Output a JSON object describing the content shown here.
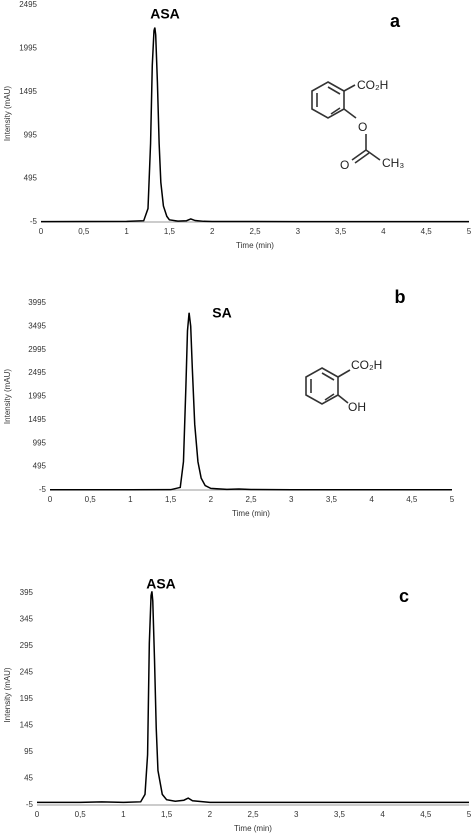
{
  "chart_data": [
    {
      "type": "line",
      "peak_label": "ASA",
      "panel_label": "a",
      "x_label": "Time (min)",
      "y_label": "Intensity (mAU)",
      "color": "#000000",
      "structure_labels": [
        "CO₂H",
        "O",
        "O",
        "CH₃"
      ],
      "x": [
        0,
        1,
        1.2,
        1.25,
        1.28,
        1.3,
        1.32,
        1.33,
        1.34,
        1.36,
        1.38,
        1.4,
        1.43,
        1.47,
        1.5,
        1.6,
        1.7,
        1.75,
        1.8,
        1.9,
        2,
        3,
        4,
        5
      ],
      "values": [
        0,
        2,
        10,
        150,
        900,
        1800,
        2200,
        2235,
        2150,
        1600,
        900,
        450,
        180,
        60,
        20,
        5,
        10,
        30,
        12,
        3,
        1,
        0,
        0,
        0
      ],
      "xlim": [
        0,
        5
      ],
      "ylim": [
        -5,
        2495
      ],
      "xticks": [
        0,
        {
          "value": 0.5,
          "label": "0,5"
        },
        1,
        {
          "value": 1.5,
          "label": "1,5"
        },
        2,
        {
          "value": 2.5,
          "label": "2,5"
        },
        3,
        {
          "value": 3.5,
          "label": "3,5"
        },
        4,
        {
          "value": 4.5,
          "label": "4,5"
        },
        5
      ],
      "yticks": [
        -5,
        495,
        995,
        1495,
        1995,
        2495
      ]
    },
    {
      "type": "line",
      "peak_label": "SA",
      "panel_label": "b",
      "x_label": "Time (min)",
      "y_label": "Intensity (mAU)",
      "color": "#000000",
      "structure_labels": [
        "CO₂H",
        "OH"
      ],
      "x": [
        0,
        1,
        1.5,
        1.62,
        1.66,
        1.69,
        1.71,
        1.73,
        1.75,
        1.77,
        1.8,
        1.84,
        1.88,
        1.93,
        2,
        2.2,
        2.35,
        2.5,
        3,
        4,
        5
      ],
      "values": [
        0,
        0,
        2,
        50,
        600,
        2200,
        3400,
        3786,
        3500,
        2600,
        1400,
        600,
        250,
        90,
        30,
        8,
        15,
        5,
        0,
        0,
        0
      ],
      "xlim": [
        0,
        5
      ],
      "ylim": [
        -5,
        3995
      ],
      "xticks": [
        0,
        {
          "value": 0.5,
          "label": "0,5"
        },
        1,
        {
          "value": 1.5,
          "label": "1,5"
        },
        2,
        {
          "value": 2.5,
          "label": "2,5"
        },
        3,
        {
          "value": 3.5,
          "label": "3,5"
        },
        4,
        {
          "value": 4.5,
          "label": "4,5"
        },
        5
      ],
      "yticks": [
        -5,
        495,
        995,
        1495,
        1995,
        2495,
        2995,
        3495,
        3995
      ]
    },
    {
      "type": "line",
      "peak_label": "ASA",
      "panel_label": "c",
      "x_label": "Time (min)",
      "y_label": "Intensity (mAU)",
      "color": "#000000",
      "x": [
        0,
        0.5,
        0.75,
        1,
        1.2,
        1.25,
        1.28,
        1.3,
        1.32,
        1.33,
        1.34,
        1.36,
        1.38,
        1.4,
        1.45,
        1.5,
        1.6,
        1.7,
        1.75,
        1.8,
        2,
        3,
        4,
        5
      ],
      "values": [
        0,
        0,
        1,
        0,
        1,
        15,
        90,
        300,
        390,
        398,
        380,
        270,
        140,
        60,
        15,
        5,
        2,
        4,
        8,
        3,
        0,
        0,
        0,
        0
      ],
      "xlim": [
        0,
        5
      ],
      "ylim": [
        -5,
        410
      ],
      "xticks": [
        0,
        {
          "value": 0.5,
          "label": "0,5"
        },
        1,
        {
          "value": 1.5,
          "label": "1,5"
        },
        2,
        {
          "value": 2.5,
          "label": "2,5"
        },
        3,
        {
          "value": 3.5,
          "label": "3,5"
        },
        4,
        {
          "value": 4.5,
          "label": "4,5"
        },
        5
      ],
      "yticks": [
        -5,
        45,
        95,
        145,
        195,
        245,
        295,
        345,
        395
      ]
    }
  ]
}
